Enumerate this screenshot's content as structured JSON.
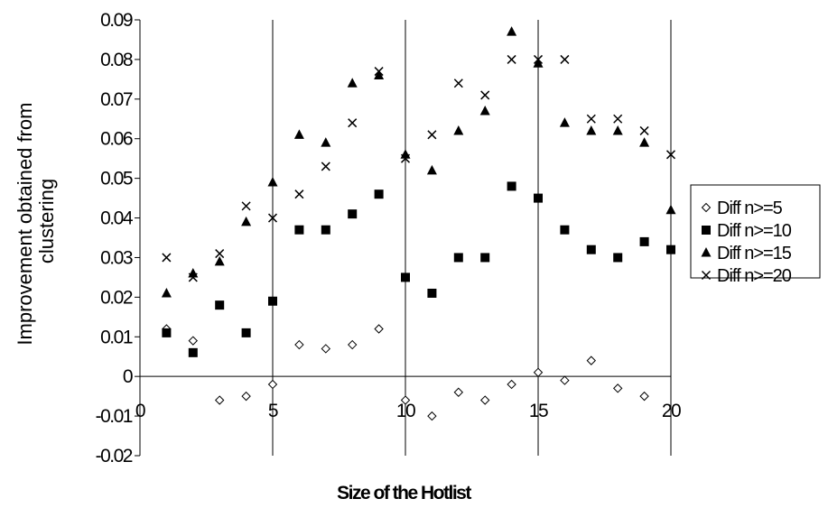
{
  "chart_data": {
    "type": "scatter",
    "xlabel": "Size of the Hotlist",
    "ylabel": [
      "Improvement obtained from",
      "clustering"
    ],
    "xlim": [
      0,
      20
    ],
    "ylim": [
      -0.02,
      0.09
    ],
    "xticks": [
      "0",
      "5",
      "10",
      "15",
      "20"
    ],
    "yticks": [
      "-0.02",
      "-0.01",
      "0",
      "0.01",
      "0.02",
      "0.03",
      "0.04",
      "0.05",
      "0.06",
      "0.07",
      "0.08",
      "0.09"
    ],
    "grid": "vertical",
    "legend_position": "right",
    "series": [
      {
        "name": "Diff n>=5",
        "marker": "diamond-open",
        "x": [
          1,
          2,
          3,
          4,
          5,
          6,
          7,
          8,
          9,
          10,
          11,
          12,
          13,
          14,
          15,
          16,
          17,
          18,
          19
        ],
        "y": [
          0.012,
          0.009,
          -0.006,
          -0.005,
          -0.002,
          0.008,
          0.007,
          0.008,
          0.012,
          -0.006,
          -0.01,
          -0.004,
          -0.006,
          -0.002,
          0.001,
          -0.001,
          0.004,
          -0.003,
          -0.005
        ]
      },
      {
        "name": "Diff n>=10",
        "marker": "square-filled",
        "x": [
          1,
          2,
          3,
          4,
          5,
          6,
          7,
          8,
          9,
          10,
          11,
          12,
          13,
          14,
          15,
          16,
          17,
          18,
          19,
          20
        ],
        "y": [
          0.011,
          0.006,
          0.018,
          0.011,
          0.019,
          0.037,
          0.037,
          0.041,
          0.046,
          0.025,
          0.021,
          0.03,
          0.03,
          0.048,
          0.045,
          0.037,
          0.032,
          0.03,
          0.034,
          0.032
        ]
      },
      {
        "name": "Diff n>=15",
        "marker": "triangle-filled",
        "x": [
          1,
          2,
          3,
          4,
          5,
          6,
          7,
          8,
          9,
          10,
          11,
          12,
          13,
          14,
          15,
          16,
          17,
          18,
          19,
          20
        ],
        "y": [
          0.021,
          0.026,
          0.029,
          0.039,
          0.049,
          0.061,
          0.059,
          0.074,
          0.076,
          0.056,
          0.052,
          0.062,
          0.067,
          0.087,
          0.079,
          0.064,
          0.062,
          0.062,
          0.059,
          0.042
        ]
      },
      {
        "name": "Diff n>=20",
        "marker": "x",
        "x": [
          1,
          2,
          3,
          4,
          5,
          6,
          7,
          8,
          9,
          10,
          11,
          12,
          13,
          14,
          15,
          16,
          17,
          18,
          19,
          20
        ],
        "y": [
          0.03,
          0.025,
          0.031,
          0.043,
          0.04,
          0.046,
          0.053,
          0.064,
          0.077,
          0.055,
          0.061,
          0.074,
          0.071,
          0.08,
          0.08,
          0.08,
          0.065,
          0.065,
          0.062,
          0.056
        ]
      }
    ],
    "legend_labels": [
      "Diff n>=5",
      "Diff n>=10",
      "Diff n>=15",
      "Diff n>=20"
    ]
  }
}
